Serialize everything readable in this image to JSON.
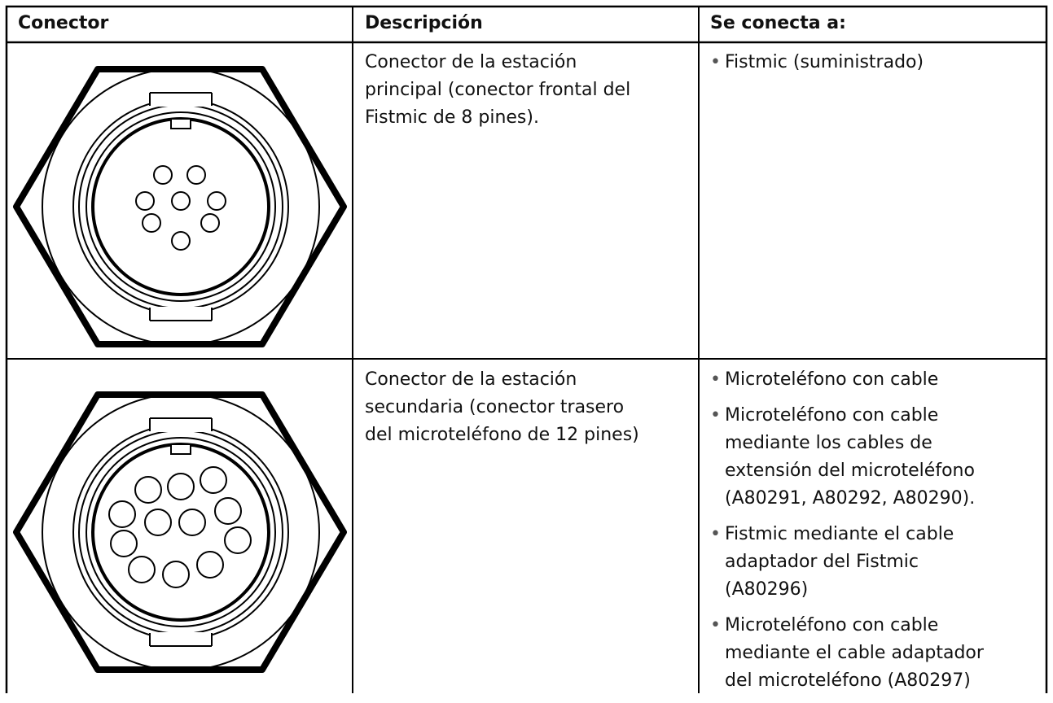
{
  "table": {
    "headers": [
      "Conector",
      "Descripción",
      "Se conecta a:"
    ],
    "rows": [
      {
        "description": [
          "Conector de la estación",
          "principal (conector frontal del",
          "Fistmic de 8 pines)."
        ],
        "connects": [
          [
            "Fistmic (suministrado)"
          ]
        ]
      },
      {
        "description": [
          "Conector de la estación",
          "secundaria (conector trasero",
          "del microteléfono de 12 pines)"
        ],
        "connects": [
          [
            "Microteléfono con cable"
          ],
          [
            "Microteléfono con cable",
            "mediante los cables de",
            "extensión del microteléfono",
            "(A80291, A80292, A80290)."
          ],
          [
            "Fistmic mediante el cable",
            "adaptador del Fistmic",
            "(A80296)"
          ],
          [
            "Microteléfono con cable",
            "mediante el cable adaptador",
            "del microteléfono (A80297)"
          ]
        ]
      }
    ]
  }
}
